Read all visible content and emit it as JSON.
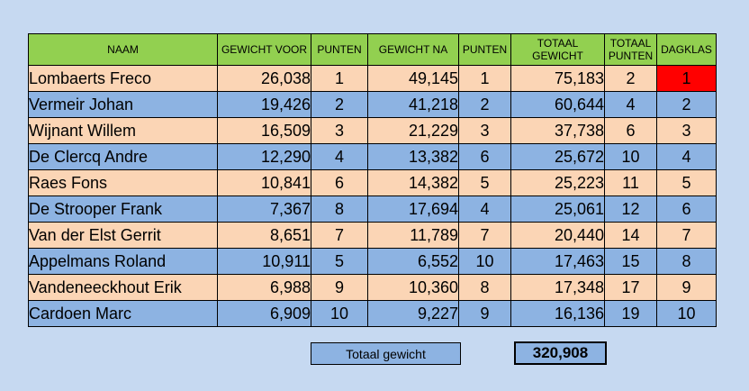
{
  "headers": {
    "naam": "NAAM",
    "gewicht_voor": "GEWICHT VOOR",
    "punten1": "PUNTEN",
    "gewicht_na": "GEWICHT NA",
    "punten2": "PUNTEN",
    "totaal_gewicht": "TOTAAL GEWICHT",
    "totaal_punten": "TOTAAL PUNTEN",
    "dagklas": "DAGKLAS"
  },
  "rows": [
    {
      "naam": "Lombaerts Freco",
      "voor": "26,038",
      "p1": "1",
      "na": "49,145",
      "p2": "1",
      "totaal": "75,183",
      "tp": "2",
      "dag": "1"
    },
    {
      "naam": "Vermeir Johan",
      "voor": "19,426",
      "p1": "2",
      "na": "41,218",
      "p2": "2",
      "totaal": "60,644",
      "tp": "4",
      "dag": "2"
    },
    {
      "naam": "Wijnant Willem",
      "voor": "16,509",
      "p1": "3",
      "na": "21,229",
      "p2": "3",
      "totaal": "37,738",
      "tp": "6",
      "dag": "3"
    },
    {
      "naam": "De Clercq Andre",
      "voor": "12,290",
      "p1": "4",
      "na": "13,382",
      "p2": "6",
      "totaal": "25,672",
      "tp": "10",
      "dag": "4"
    },
    {
      "naam": "Raes Fons",
      "voor": "10,841",
      "p1": "6",
      "na": "14,382",
      "p2": "5",
      "totaal": "25,223",
      "tp": "11",
      "dag": "5"
    },
    {
      "naam": "De Strooper Frank",
      "voor": "7,367",
      "p1": "8",
      "na": "17,694",
      "p2": "4",
      "totaal": "25,061",
      "tp": "12",
      "dag": "6"
    },
    {
      "naam": "Van der Elst Gerrit",
      "voor": "8,651",
      "p1": "7",
      "na": "11,789",
      "p2": "7",
      "totaal": "20,440",
      "tp": "14",
      "dag": "7"
    },
    {
      "naam": "Appelmans Roland",
      "voor": "10,911",
      "p1": "5",
      "na": "6,552",
      "p2": "10",
      "totaal": "17,463",
      "tp": "15",
      "dag": "8"
    },
    {
      "naam": "Vandeneeckhout Erik",
      "voor": "6,988",
      "p1": "9",
      "na": "10,360",
      "p2": "8",
      "totaal": "17,348",
      "tp": "17",
      "dag": "9"
    },
    {
      "naam": "Cardoen Marc",
      "voor": "6,909",
      "p1": "10",
      "na": "9,227",
      "p2": "9",
      "totaal": "16,136",
      "tp": "19",
      "dag": "10"
    }
  ],
  "footer": {
    "label": "Totaal gewicht",
    "value": "320,908"
  },
  "colors": {
    "background": "#c6d9f1",
    "header": "#92d050",
    "row_peach": "#fbd5b5",
    "row_blue": "#8db3e2",
    "highlight": "#ff0000"
  }
}
